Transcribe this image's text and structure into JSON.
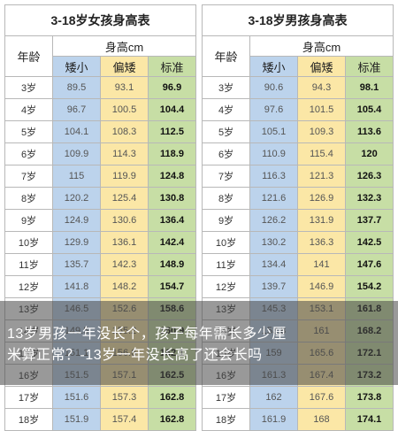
{
  "girls": {
    "title": "3-18岁女孩身高表",
    "age_header": "年龄",
    "height_header": "身高cm",
    "col_short": "矮小",
    "col_mid": "偏矮",
    "col_std": "标准",
    "rows": [
      {
        "age": "3岁",
        "short": "89.5",
        "mid": "93.1",
        "std": "96.9"
      },
      {
        "age": "4岁",
        "short": "96.7",
        "mid": "100.5",
        "std": "104.4"
      },
      {
        "age": "5岁",
        "short": "104.1",
        "mid": "108.3",
        "std": "112.5"
      },
      {
        "age": "6岁",
        "short": "109.9",
        "mid": "114.3",
        "std": "118.9"
      },
      {
        "age": "7岁",
        "short": "115",
        "mid": "119.9",
        "std": "124.8"
      },
      {
        "age": "8岁",
        "short": "120.2",
        "mid": "125.4",
        "std": "130.8"
      },
      {
        "age": "9岁",
        "short": "124.9",
        "mid": "130.6",
        "std": "136.4"
      },
      {
        "age": "10岁",
        "short": "129.9",
        "mid": "136.1",
        "std": "142.4"
      },
      {
        "age": "11岁",
        "short": "135.7",
        "mid": "142.3",
        "std": "148.9"
      },
      {
        "age": "12岁",
        "short": "141.8",
        "mid": "148.2",
        "std": "154.7"
      },
      {
        "age": "13岁",
        "short": "146.5",
        "mid": "152.6",
        "std": "158.6"
      },
      {
        "age": "14岁",
        "short": "149.5",
        "mid": "155.2",
        "std": "160.9"
      },
      {
        "age": "15岁",
        "short": "151.1",
        "mid": "156.6",
        "std": "162.1"
      },
      {
        "age": "16岁",
        "short": "151.5",
        "mid": "157.1",
        "std": "162.5"
      },
      {
        "age": "17岁",
        "short": "151.6",
        "mid": "157.3",
        "std": "162.8"
      },
      {
        "age": "18岁",
        "short": "151.9",
        "mid": "157.4",
        "std": "162.8"
      }
    ]
  },
  "boys": {
    "title": "3-18岁男孩身高表",
    "age_header": "年龄",
    "height_header": "身高cm",
    "col_short": "矮小",
    "col_mid": "偏矮",
    "col_std": "标准",
    "rows": [
      {
        "age": "3岁",
        "short": "90.6",
        "mid": "94.3",
        "std": "98.1"
      },
      {
        "age": "4岁",
        "short": "97.6",
        "mid": "101.5",
        "std": "105.4"
      },
      {
        "age": "5岁",
        "short": "105.1",
        "mid": "109.3",
        "std": "113.6"
      },
      {
        "age": "6岁",
        "short": "110.9",
        "mid": "115.4",
        "std": "120"
      },
      {
        "age": "7岁",
        "short": "116.3",
        "mid": "121.3",
        "std": "126.3"
      },
      {
        "age": "8岁",
        "short": "121.6",
        "mid": "126.9",
        "std": "132.3"
      },
      {
        "age": "9岁",
        "short": "126.2",
        "mid": "131.9",
        "std": "137.7"
      },
      {
        "age": "10岁",
        "short": "130.2",
        "mid": "136.3",
        "std": "142.5"
      },
      {
        "age": "11岁",
        "short": "134.4",
        "mid": "141",
        "std": "147.6"
      },
      {
        "age": "12岁",
        "short": "139.7",
        "mid": "146.9",
        "std": "154.2"
      },
      {
        "age": "13岁",
        "short": "145.3",
        "mid": "153.1",
        "std": "161.8"
      },
      {
        "age": "14岁",
        "short": "153.8",
        "mid": "161",
        "std": "168.2"
      },
      {
        "age": "15岁",
        "short": "159",
        "mid": "165.6",
        "std": "172.1"
      },
      {
        "age": "16岁",
        "short": "161.3",
        "mid": "167.4",
        "std": "173.2"
      },
      {
        "age": "17岁",
        "short": "162",
        "mid": "167.6",
        "std": "173.8"
      },
      {
        "age": "18岁",
        "short": "161.9",
        "mid": "168",
        "std": "174.1"
      }
    ]
  },
  "caption": {
    "line1": "13岁男孩一年没长个，孩子每年需长多少厘",
    "line2": "米算正常？-13岁一年没长高了还会长吗"
  }
}
